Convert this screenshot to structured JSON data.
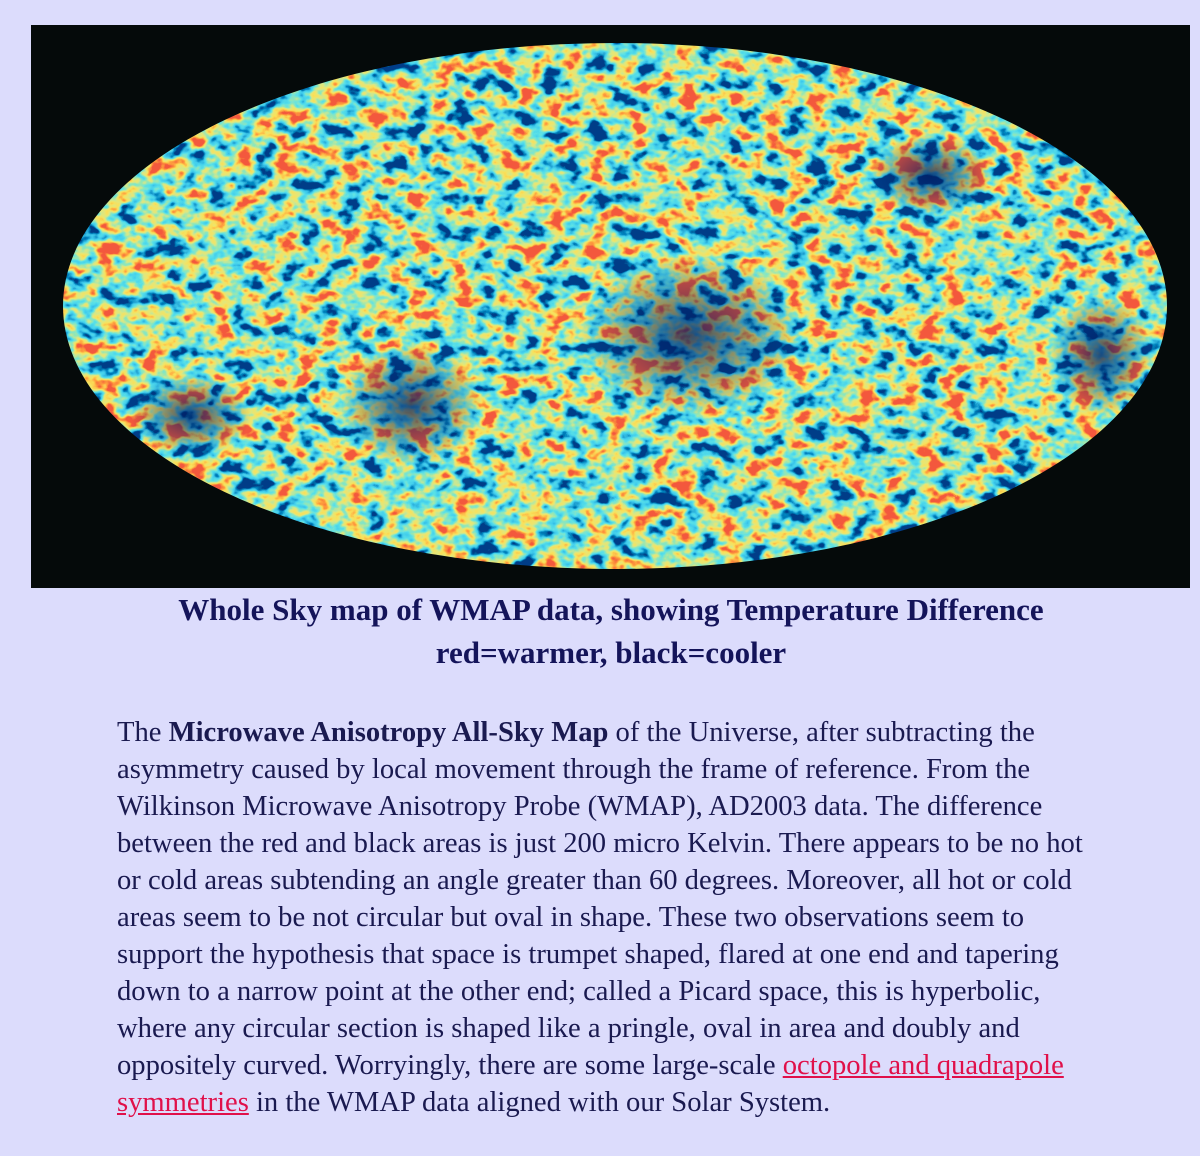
{
  "caption": {
    "line1": "Whole Sky map of WMAP data, showing Temperature Difference",
    "line2": "red=warmer, black=cooler"
  },
  "body": {
    "text_before": "The ",
    "bold": "Microwave Anisotropy All-Sky Map",
    "text_middle": " of the Universe, after subtracting the asymmetry caused by local movement through the frame of reference. From the Wilkinson Microwave Anisotropy Probe (WMAP), AD2003 data. The difference between the red and black areas is just 200 micro Kelvin. There appears to be no hot or cold areas subtending an angle greater than 60 degrees. Moreover, all hot or cold areas seem to be not circular but oval in shape. These two observations seem to support the hypothesis that space is trumpet shaped, flared at one end and tapering down to a narrow point at the other end; called a Picard space, this is hyperbolic, where any circular section is shaped like a pringle, oval in area and doubly and oppositely curved. Worryingly, there are some large-scale ",
    "link": "octopole and quadrapole symmetries",
    "text_after": " in the WMAP data aligned with our Solar System."
  }
}
